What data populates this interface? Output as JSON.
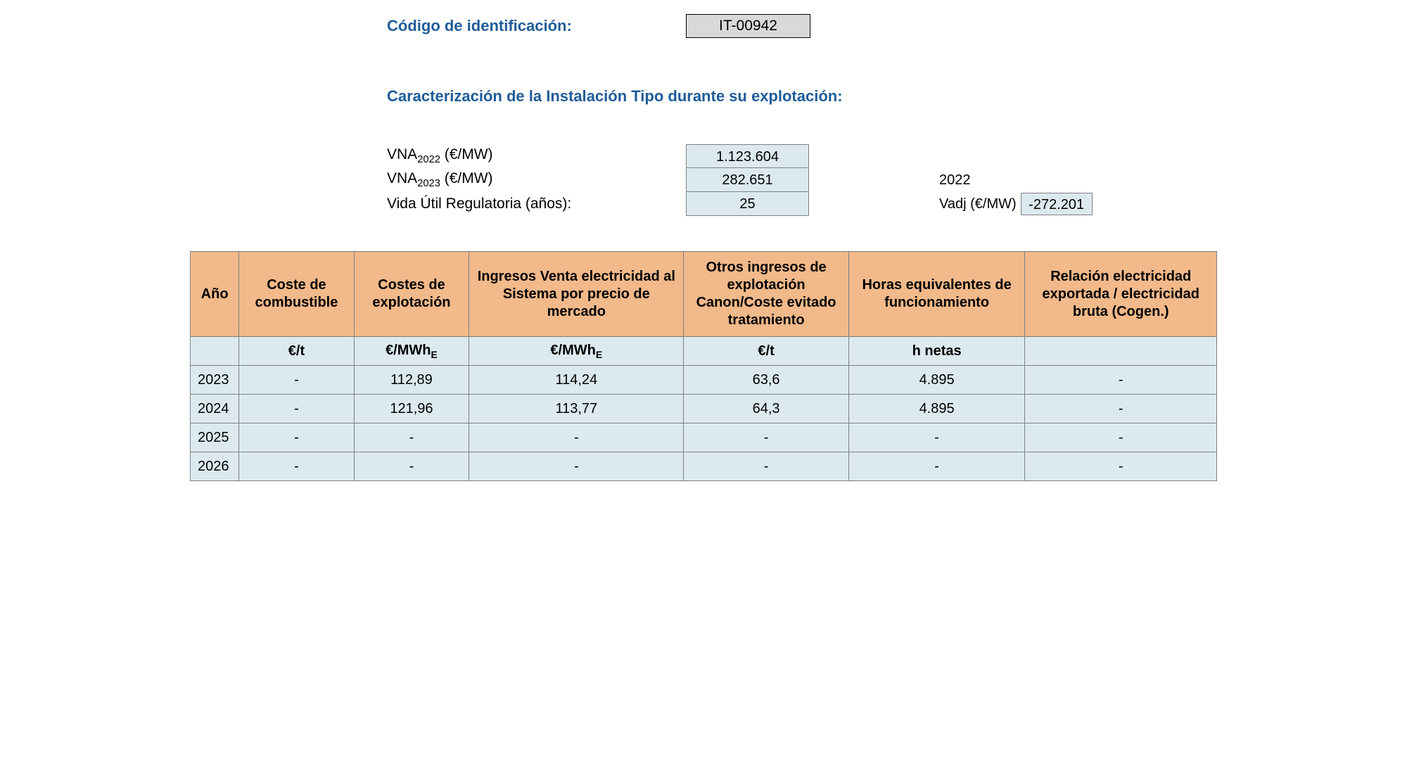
{
  "header": {
    "code_label": "Código de identificación:",
    "code_value": "IT-00942",
    "section_title": "Caracterización de la Instalación Tipo durante su explotación:"
  },
  "params": {
    "vna_2022_label_pre": "VNA",
    "vna_2022_label_sub": "2022",
    "vna_2022_label_post": " (€/MW)",
    "vna_2022_value": "1.123.604",
    "vna_2023_label_pre": "VNA",
    "vna_2023_label_sub": "2023",
    "vna_2023_label_post": " (€/MW)",
    "vna_2023_value": "282.651",
    "vida_label": "Vida Útil Regulatoria (años):",
    "vida_value": "25",
    "year_right": "2022",
    "vadj_label": "Vadj (€/MW)",
    "vadj_value": "-272.201"
  },
  "table": {
    "headers": {
      "year": "Año",
      "fuel": "Coste de combustible",
      "opex": "Costes de explotación",
      "rev": "Ingresos Venta electricidad al Sistema por precio de mercado",
      "other": "Otros ingresos de explotación Canon/Coste evitado tratamiento",
      "hours": "Horas equivalentes de funcionamiento",
      "ratio": "Relación electricidad exportada / electricidad bruta (Cogen.)"
    },
    "units": {
      "year": "",
      "fuel": "€/t",
      "opex_pre": "€/MWh",
      "opex_sub": "E",
      "rev_pre": "€/MWh",
      "rev_sub": "E",
      "other": "€/t",
      "hours": "h netas",
      "ratio": ""
    },
    "rows": [
      {
        "year": "2023",
        "fuel": "-",
        "opex": "112,89",
        "rev": "114,24",
        "other": "63,6",
        "hours": "4.895",
        "ratio": "-"
      },
      {
        "year": "2024",
        "fuel": "-",
        "opex": "121,96",
        "rev": "113,77",
        "other": "64,3",
        "hours": "4.895",
        "ratio": "-"
      },
      {
        "year": "2025",
        "fuel": "-",
        "opex": "-",
        "rev": "-",
        "other": "-",
        "hours": "-",
        "ratio": "-"
      },
      {
        "year": "2026",
        "fuel": "-",
        "opex": "-",
        "rev": "-",
        "other": "-",
        "hours": "-",
        "ratio": "-"
      }
    ],
    "colors": {
      "header_bg": "#f2b98a",
      "cell_bg": "#dceaf0",
      "border": "#7f7f7f",
      "heading_text": "#1f5c99"
    }
  }
}
